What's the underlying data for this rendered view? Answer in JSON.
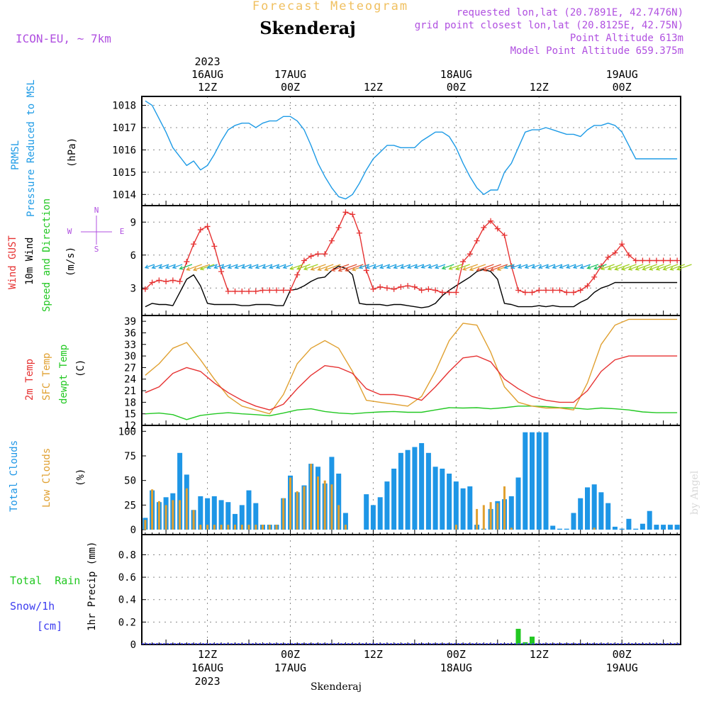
{
  "header": {
    "subtitle": "Forecast Meteogram",
    "location": "Skenderaj",
    "model": "ICON-EU, ~ 7km",
    "requested": "requested lon,lat (20.7891E, 42.7476N)",
    "grid_point": "grid point closest lon,lat (20.8125E, 42.75N)",
    "point_alt": "Point Altitude 613m",
    "model_alt": "Model Point Altitude 659.375m"
  },
  "footer": {
    "location": "Skenderaj",
    "credit": "by Angel"
  },
  "time_axis": {
    "year": "2023",
    "ticks": [
      {
        "hour": 12,
        "top_date": "16AUG",
        "top_time": "12Z",
        "bottom_time": "12Z",
        "bottom_date": "16AUG"
      },
      {
        "hour": 24,
        "top_date": "17AUG",
        "top_time": "00Z",
        "bottom_time": "00Z",
        "bottom_date": "17AUG"
      },
      {
        "hour": 36,
        "top_date": "",
        "top_time": "12Z",
        "bottom_time": "12Z",
        "bottom_date": ""
      },
      {
        "hour": 48,
        "top_date": "18AUG",
        "top_time": "00Z",
        "bottom_time": "00Z",
        "bottom_date": "18AUG"
      },
      {
        "hour": 60,
        "top_date": "",
        "top_time": "12Z",
        "bottom_time": "12Z",
        "bottom_date": ""
      },
      {
        "hour": 72,
        "top_date": "19AUG",
        "top_time": "00Z",
        "bottom_time": "00Z",
        "bottom_date": "19AUG"
      }
    ]
  },
  "colors": {
    "pressure": "#1e9be6",
    "gust": "#e63232",
    "wind": "#000000",
    "temp2m": "#e63232",
    "sfc": "#e0a030",
    "dewpt": "#22c822",
    "total_cloud": "#1e96e6",
    "low_cloud": "#e0a030",
    "rain": "#22c822",
    "snow": "#3c3cf0",
    "meta": "#b050e0",
    "title_faint": "#f0c060"
  },
  "panels": {
    "pressure": {
      "label1": "PRMSL",
      "label2": "Pressure Reduced to MSL",
      "unit": "(hPa)",
      "ticks": [
        "1018",
        "1017",
        "1016",
        "1015",
        "1014"
      ]
    },
    "wind": {
      "label_gust": "Wind GUST",
      "label_wind": "10m Wind",
      "label_dir": "Speed and Direction",
      "unit": "(m/s)",
      "ticks": [
        "9",
        "6",
        "3"
      ],
      "compass": {
        "n": "N",
        "s": "S",
        "w": "W",
        "e": "E"
      }
    },
    "temp": {
      "label_2m": "2m Temp",
      "label_sfc": "SFC Temp",
      "label_dew": "dewpt Temp",
      "unit": "(C)",
      "ticks": [
        "39",
        "36",
        "33",
        "30",
        "27",
        "24",
        "21",
        "18",
        "15",
        "12"
      ]
    },
    "cloud": {
      "label_total": "Total Clouds",
      "label_low": "Low Clouds",
      "unit": "(%)",
      "ticks": [
        "100",
        "75",
        "50",
        "25",
        "0"
      ]
    },
    "precip": {
      "label_rain": "Total  Rain",
      "label_snow": "Snow/1h",
      "label_cm": "[cm]",
      "unit": "1hr Precip (mm)",
      "ticks": [
        "0.8",
        "0.6",
        "0.4",
        "0.2",
        "0"
      ]
    }
  },
  "chart_data": {
    "type": "line",
    "x_unit": "hours since 2023-08-16 00Z",
    "xlim": [
      2.5,
      80.5
    ],
    "pressure": {
      "ylim": [
        1013.5,
        1018.4
      ],
      "x": [
        3,
        4,
        5,
        6,
        7,
        8,
        9,
        10,
        11,
        12,
        13,
        14,
        15,
        16,
        17,
        18,
        19,
        20,
        21,
        22,
        23,
        24,
        25,
        26,
        27,
        28,
        29,
        30,
        31,
        32,
        33,
        34,
        35,
        36,
        37,
        38,
        39,
        40,
        41,
        42,
        43,
        44,
        45,
        46,
        47,
        48,
        49,
        50,
        51,
        52,
        53,
        54,
        55,
        56,
        57,
        58,
        59,
        60,
        61,
        62,
        63,
        64,
        65,
        66,
        67,
        68,
        69,
        70,
        71,
        72,
        73,
        74,
        75,
        76,
        77,
        78,
        79,
        80
      ],
      "y": [
        1018.2,
        1018.0,
        1017.4,
        1016.8,
        1016.1,
        1015.7,
        1015.3,
        1015.5,
        1015.1,
        1015.3,
        1015.8,
        1016.4,
        1016.9,
        1017.1,
        1017.2,
        1017.2,
        1017.0,
        1017.2,
        1017.3,
        1017.3,
        1017.5,
        1017.5,
        1017.3,
        1016.9,
        1016.2,
        1015.4,
        1014.8,
        1014.3,
        1013.9,
        1013.8,
        1014.0,
        1014.5,
        1015.1,
        1015.6,
        1015.9,
        1016.2,
        1016.2,
        1016.1,
        1016.1,
        1016.1,
        1016.4,
        1016.6,
        1016.8,
        1016.8,
        1016.6,
        1016.1,
        1015.4,
        1014.8,
        1014.3,
        1014.0,
        1014.2,
        1014.2,
        1015.0,
        1015.4,
        1016.1,
        1016.8,
        1016.9,
        1016.9,
        1017.0,
        1016.9,
        1016.8,
        1016.7,
        1016.7,
        1016.6,
        1016.9,
        1017.1,
        1017.1,
        1017.2,
        1017.1,
        1016.8,
        1016.2,
        1015.6,
        1015.6,
        1015.6,
        1015.6,
        1015.6,
        1015.6,
        1015.6
      ]
    },
    "wind": {
      "ylim": [
        0.5,
        10.5
      ],
      "x": [
        3,
        4,
        5,
        6,
        7,
        8,
        9,
        10,
        11,
        12,
        13,
        14,
        15,
        16,
        17,
        18,
        19,
        20,
        21,
        22,
        23,
        24,
        25,
        26,
        27,
        28,
        29,
        30,
        31,
        32,
        33,
        34,
        35,
        36,
        37,
        38,
        39,
        40,
        41,
        42,
        43,
        44,
        45,
        46,
        47,
        48,
        49,
        50,
        51,
        52,
        53,
        54,
        55,
        56,
        57,
        58,
        59,
        60,
        61,
        62,
        63,
        64,
        65,
        66,
        67,
        68,
        69,
        70,
        71,
        72,
        73,
        74,
        75,
        76,
        77,
        78,
        79,
        80
      ],
      "gust": [
        2.9,
        3.5,
        3.7,
        3.6,
        3.7,
        3.6,
        5.4,
        7.0,
        8.3,
        8.6,
        6.8,
        4.5,
        2.7,
        2.7,
        2.7,
        2.7,
        2.7,
        2.8,
        2.8,
        2.8,
        2.8,
        2.8,
        4.2,
        5.5,
        5.9,
        6.1,
        6.1,
        7.3,
        8.5,
        9.9,
        9.7,
        8.0,
        4.6,
        2.9,
        3.1,
        3.0,
        2.9,
        3.1,
        3.2,
        3.1,
        2.8,
        2.9,
        2.8,
        2.6,
        2.6,
        2.6,
        5.4,
        6.1,
        7.3,
        8.5,
        9.1,
        8.4,
        7.8,
        5.0,
        2.8,
        2.6,
        2.6,
        2.8,
        2.8,
        2.8,
        2.8,
        2.6,
        2.6,
        2.8,
        3.2,
        4.0,
        5.0,
        5.8,
        6.2,
        7.0,
        6.0,
        5.5,
        5.5,
        5.5,
        5.5,
        5.5,
        5.5,
        5.5
      ],
      "wind": [
        1.3,
        1.6,
        1.5,
        1.5,
        1.4,
        2.6,
        3.8,
        4.2,
        3.2,
        1.6,
        1.5,
        1.5,
        1.5,
        1.5,
        1.4,
        1.4,
        1.5,
        1.5,
        1.5,
        1.4,
        1.4,
        2.8,
        2.9,
        3.2,
        3.6,
        3.9,
        4.0,
        4.6,
        5.0,
        4.8,
        4.2,
        1.6,
        1.5,
        1.5,
        1.5,
        1.4,
        1.5,
        1.5,
        1.4,
        1.3,
        1.2,
        1.3,
        1.6,
        2.3,
        2.8,
        3.2,
        3.6,
        4.0,
        4.5,
        4.7,
        4.5,
        3.8,
        1.6,
        1.5,
        1.3,
        1.3,
        1.3,
        1.4,
        1.3,
        1.4,
        1.3,
        1.3,
        1.3,
        1.7,
        2.0,
        2.6,
        3.0,
        3.2,
        3.5,
        3.5,
        3.5,
        3.5,
        3.5,
        3.5,
        3.5,
        3.5,
        3.5,
        3.5
      ]
    },
    "temp": {
      "ylim": [
        12,
        40.5
      ],
      "x": [
        3,
        5,
        7,
        9,
        11,
        13,
        15,
        17,
        19,
        21,
        23,
        25,
        27,
        29,
        31,
        33,
        35,
        37,
        39,
        41,
        43,
        45,
        47,
        49,
        51,
        53,
        55,
        57,
        59,
        61,
        63,
        65,
        67,
        69,
        71,
        73,
        75,
        77,
        79,
        80
      ],
      "t2m": [
        20.5,
        22.0,
        25.5,
        27.0,
        26.0,
        23.0,
        20.5,
        18.5,
        17.0,
        16.0,
        17.5,
        21.5,
        25.0,
        27.5,
        27.0,
        25.5,
        21.5,
        20.0,
        20.0,
        19.5,
        18.5,
        22.0,
        26.0,
        29.5,
        30.0,
        28.5,
        24.0,
        21.5,
        19.5,
        18.5,
        18.0,
        18.0,
        21.0,
        26.0,
        29.0,
        30.0,
        30.0,
        30.0,
        30.0,
        30.0
      ],
      "sfc": [
        25.0,
        28.0,
        32.0,
        33.5,
        29.0,
        24.0,
        19.5,
        17.0,
        16.0,
        15.0,
        20.0,
        28.0,
        32.0,
        34.0,
        32.0,
        26.0,
        18.5,
        18.0,
        17.5,
        17.0,
        19.5,
        26.0,
        34.0,
        38.5,
        38.0,
        31.0,
        22.0,
        18.0,
        17.0,
        16.5,
        16.5,
        16.0,
        23.0,
        33.0,
        38.0,
        39.5,
        39.5,
        39.5,
        39.5,
        39.5
      ],
      "dew": [
        15.0,
        15.2,
        14.8,
        13.5,
        14.6,
        15.0,
        15.3,
        15.0,
        14.8,
        14.5,
        15.2,
        16.0,
        16.3,
        15.6,
        15.2,
        15.0,
        15.3,
        15.5,
        15.6,
        15.4,
        15.4,
        16.0,
        16.6,
        16.5,
        16.6,
        16.3,
        16.6,
        17.0,
        17.0,
        16.9,
        16.6,
        16.5,
        16.2,
        16.5,
        16.3,
        16.0,
        15.5,
        15.3,
        15.3,
        15.3
      ]
    },
    "clouds": {
      "ylim": [
        -5,
        106
      ],
      "x": [
        3,
        4,
        5,
        6,
        7,
        8,
        9,
        10,
        11,
        12,
        13,
        14,
        15,
        16,
        17,
        18,
        19,
        20,
        21,
        22,
        23,
        24,
        25,
        26,
        27,
        28,
        29,
        30,
        31,
        32,
        33,
        34,
        35,
        36,
        37,
        38,
        39,
        40,
        41,
        42,
        43,
        44,
        45,
        46,
        47,
        48,
        49,
        50,
        51,
        52,
        53,
        54,
        55,
        56,
        57,
        58,
        59,
        60,
        61,
        62,
        63,
        64,
        65,
        66,
        67,
        68,
        69,
        70,
        71,
        72,
        73,
        74,
        75,
        76,
        77,
        78,
        79,
        80
      ],
      "total": [
        12,
        40,
        28,
        33,
        37,
        78,
        56,
        20,
        34,
        32,
        34,
        30,
        28,
        16,
        25,
        40,
        27,
        5,
        5,
        5,
        32,
        55,
        38,
        45,
        67,
        64,
        47,
        74,
        57,
        17,
        0,
        0,
        36,
        25,
        33,
        49,
        62,
        78,
        81,
        84,
        88,
        78,
        64,
        62,
        57,
        49,
        42,
        44,
        5,
        1,
        21,
        29,
        31,
        34,
        53,
        99,
        99,
        99,
        99,
        4,
        1,
        1,
        17,
        32,
        43,
        46,
        38,
        27,
        3,
        1,
        11,
        1,
        6,
        19,
        5,
        5,
        5,
        5
      ],
      "low": [
        10,
        41,
        29,
        25,
        30,
        30,
        42,
        20,
        5,
        5,
        5,
        5,
        5,
        5,
        5,
        5,
        5,
        5,
        5,
        5,
        32,
        53,
        39,
        44,
        67,
        54,
        50,
        46,
        25,
        5,
        0,
        0,
        0,
        0,
        0,
        0,
        0,
        0,
        0,
        0,
        0,
        0,
        0,
        0,
        0,
        5,
        0,
        0,
        21,
        25,
        28,
        27,
        44,
        2,
        0,
        0,
        0,
        0,
        0,
        0,
        0,
        0,
        0,
        0,
        0,
        2,
        0,
        0,
        0,
        0,
        0,
        0,
        0,
        0,
        0,
        0,
        0,
        0
      ]
    },
    "precip": {
      "ylim": [
        0,
        0.98
      ],
      "rain_x": [
        57,
        58,
        59
      ],
      "rain_mm": [
        0.14,
        0.02,
        0.07
      ],
      "snow_cm": [
        0,
        0,
        0
      ]
    }
  }
}
